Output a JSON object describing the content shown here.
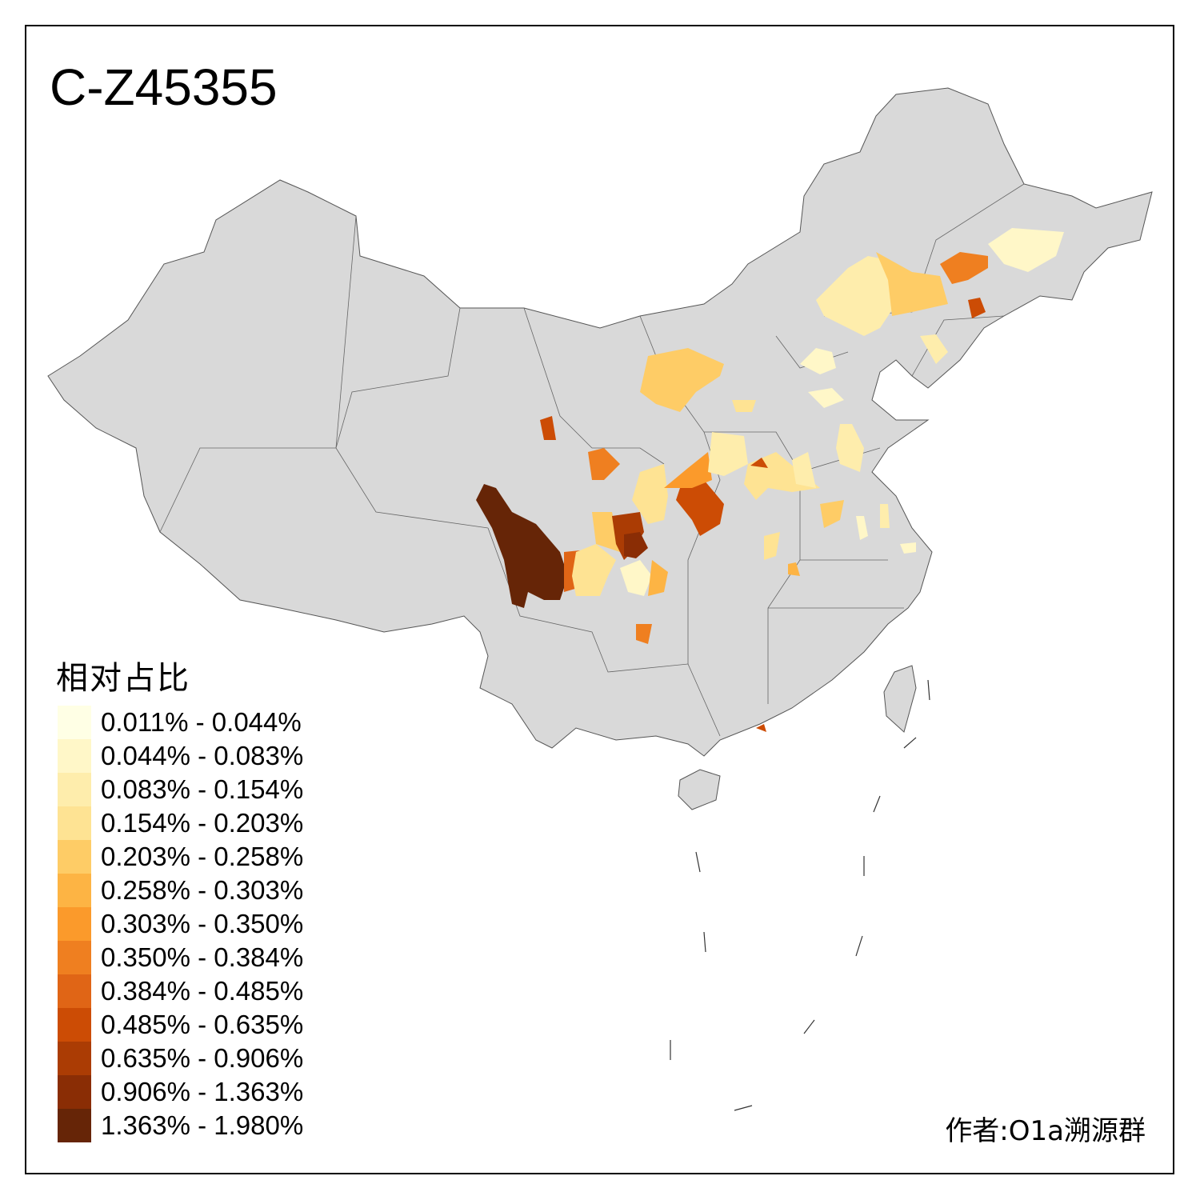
{
  "title": "C-Z45355",
  "legend": {
    "title": "相对占比",
    "items": [
      {
        "label": "0.011% - 0.044%",
        "color": "#FFFFE5"
      },
      {
        "label": "0.044% - 0.083%",
        "color": "#FFF7C8"
      },
      {
        "label": "0.083% - 0.154%",
        "color": "#FEEDAC"
      },
      {
        "label": "0.154% - 0.203%",
        "color": "#FEE393"
      },
      {
        "label": "0.203% - 0.258%",
        "color": "#FECC66"
      },
      {
        "label": "0.258% - 0.303%",
        "color": "#FDB444"
      },
      {
        "label": "0.303% - 0.350%",
        "color": "#FB9A2B"
      },
      {
        "label": "0.350% - 0.384%",
        "color": "#EF7F20"
      },
      {
        "label": "0.384% - 0.485%",
        "color": "#E06516"
      },
      {
        "label": "0.485% - 0.635%",
        "color": "#CC4C05"
      },
      {
        "label": "0.635% - 0.906%",
        "color": "#AB3C04"
      },
      {
        "label": "0.906% - 1.363%",
        "color": "#8A2D05"
      },
      {
        "label": "1.363% - 1.980%",
        "color": "#662507"
      }
    ]
  },
  "colors": {
    "no_data": "#D9D9D9",
    "border": "#555555"
  },
  "author": "作者:O1a溯源群"
}
